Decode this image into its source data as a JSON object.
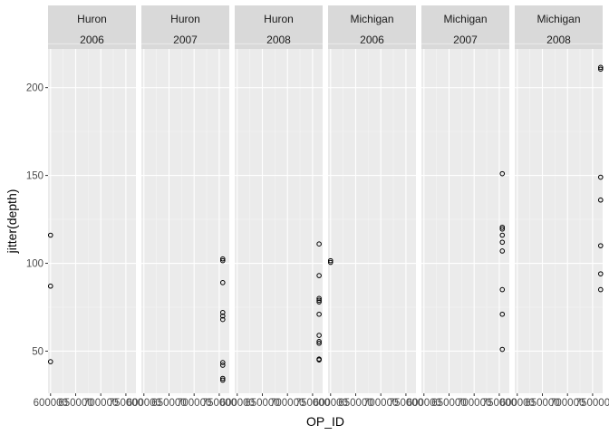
{
  "chart_data": {
    "type": "scatter",
    "xlabel": "OP_ID",
    "ylabel": "jitter(depth)",
    "xlim": [
      595000,
      770000
    ],
    "ylim": [
      26,
      222
    ],
    "x_ticks": [
      {
        "value": 600000,
        "label": "600000"
      },
      {
        "value": 650000,
        "label": "650000"
      },
      {
        "value": 700000,
        "label": "700000"
      },
      {
        "value": 750000,
        "label": "750000"
      }
    ],
    "y_ticks": [
      {
        "value": 50,
        "label": "50"
      },
      {
        "value": 100,
        "label": "100"
      },
      {
        "value": 150,
        "label": "150"
      },
      {
        "value": 200,
        "label": "200"
      }
    ],
    "grid": true,
    "point_style": {
      "shape": "open-circle",
      "color": "#000000"
    },
    "panels": [
      {
        "strip": [
          "Huron",
          "2006"
        ],
        "points": [
          {
            "x": 600000,
            "y": 116
          },
          {
            "x": 600000,
            "y": 87
          },
          {
            "x": 600000,
            "y": 44
          }
        ]
      },
      {
        "strip": [
          "Huron",
          "2007"
        ],
        "points": [
          {
            "x": 757000,
            "y": 102.5
          },
          {
            "x": 757000,
            "y": 101.5
          },
          {
            "x": 757000,
            "y": 89
          },
          {
            "x": 757000,
            "y": 72
          },
          {
            "x": 757000,
            "y": 70
          },
          {
            "x": 757000,
            "y": 68
          },
          {
            "x": 757000,
            "y": 43.5
          },
          {
            "x": 757000,
            "y": 42
          },
          {
            "x": 757000,
            "y": 34.5
          },
          {
            "x": 757000,
            "y": 33.5
          }
        ]
      },
      {
        "strip": [
          "Huron",
          "2008"
        ],
        "points": [
          {
            "x": 763000,
            "y": 111
          },
          {
            "x": 763000,
            "y": 93
          },
          {
            "x": 763000,
            "y": 80
          },
          {
            "x": 763000,
            "y": 79
          },
          {
            "x": 763000,
            "y": 78
          },
          {
            "x": 763000,
            "y": 71
          },
          {
            "x": 763000,
            "y": 59
          },
          {
            "x": 763000,
            "y": 55.5
          },
          {
            "x": 763000,
            "y": 54.5
          },
          {
            "x": 763000,
            "y": 45.5
          },
          {
            "x": 763000,
            "y": 45
          }
        ]
      },
      {
        "strip": [
          "Michigan",
          "2006"
        ],
        "points": [
          {
            "x": 600000,
            "y": 101.5
          },
          {
            "x": 600000,
            "y": 100.5
          }
        ]
      },
      {
        "strip": [
          "Michigan",
          "2007"
        ],
        "points": [
          {
            "x": 756000,
            "y": 151
          },
          {
            "x": 756000,
            "y": 120.5
          },
          {
            "x": 756000,
            "y": 119.5
          },
          {
            "x": 756000,
            "y": 116
          },
          {
            "x": 756000,
            "y": 112
          },
          {
            "x": 756000,
            "y": 107
          },
          {
            "x": 756000,
            "y": 85
          },
          {
            "x": 756000,
            "y": 71
          },
          {
            "x": 756000,
            "y": 51
          }
        ]
      },
      {
        "strip": [
          "Michigan",
          "2008"
        ],
        "points": [
          {
            "x": 766000,
            "y": 211.5
          },
          {
            "x": 766000,
            "y": 210.5
          },
          {
            "x": 766000,
            "y": 149
          },
          {
            "x": 766000,
            "y": 136
          },
          {
            "x": 766000,
            "y": 110
          },
          {
            "x": 766000,
            "y": 94
          },
          {
            "x": 766000,
            "y": 85
          }
        ]
      }
    ]
  }
}
